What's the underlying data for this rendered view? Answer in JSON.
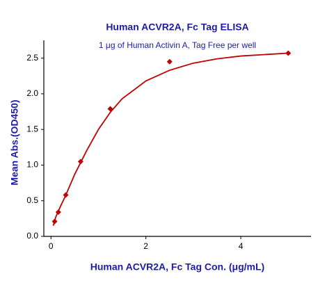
{
  "chart_data": {
    "type": "scatter",
    "title": "Human ACVR2A, Fc Tag ELISA",
    "subtitle": "1 μg of Human Activin A, Tag Free per well",
    "x_label": "Human ACVR2A, Fc Tag Con. (μg/mL)",
    "y_label": "Mean Abs.(OD450)",
    "xlim": [
      -0.15,
      5.48
    ],
    "ylim": [
      0,
      2.75
    ],
    "xticks": [
      0,
      2,
      4
    ],
    "yticks": [
      {
        "value": 0,
        "label": "0.0"
      },
      0.5,
      {
        "value": 1,
        "label": "1.0"
      },
      1.5,
      {
        "value": 2,
        "label": "2.0"
      },
      2.5
    ],
    "series": [
      {
        "color": "#c00000",
        "marker": "diamond",
        "x": [
          0.078,
          0.156,
          0.3125,
          0.625,
          1.25,
          2.5,
          5
        ],
        "y": [
          0.21,
          0.34,
          0.58,
          1.05,
          1.79,
          2.45,
          2.57
        ]
      },
      {
        "color": "#c00000",
        "marker": "line",
        "x": [
          0.05,
          0.1,
          0.2,
          0.3,
          0.5,
          0.75,
          1.0,
          1.25,
          1.5,
          2.0,
          2.5,
          3.0,
          3.5,
          4.0,
          4.5,
          5.0
        ],
        "y": [
          0.15,
          0.27,
          0.42,
          0.56,
          0.87,
          1.2,
          1.5,
          1.74,
          1.93,
          2.18,
          2.33,
          2.43,
          2.49,
          2.53,
          2.55,
          2.57
        ]
      }
    ]
  }
}
